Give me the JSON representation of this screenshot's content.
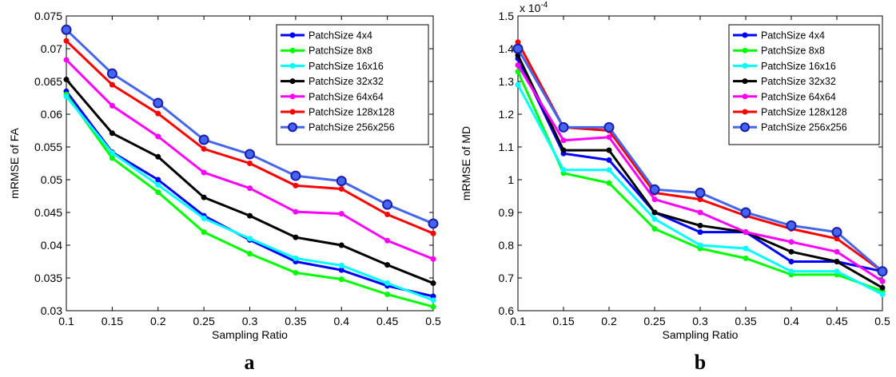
{
  "chart_data": [
    {
      "type": "line",
      "panel_label": "a",
      "title": "",
      "xlabel": "Sampling Ratio",
      "ylabel": "mRMSE of FA",
      "exponent_label": "",
      "x": [
        0.1,
        0.15,
        0.2,
        0.25,
        0.3,
        0.35,
        0.4,
        0.45,
        0.5
      ],
      "x_ticks": [
        "0.1",
        "0.15",
        "0.2",
        "0.25",
        "0.3",
        "0.35",
        "0.4",
        "0.45",
        "0.5"
      ],
      "xlim": [
        0.1,
        0.5
      ],
      "ylim": [
        0.03,
        0.075
      ],
      "y_ticks": [
        0.03,
        0.035,
        0.04,
        0.045,
        0.05,
        0.055,
        0.06,
        0.065,
        0.07,
        0.075
      ],
      "y_tick_labels": [
        "0.03",
        "0.035",
        "0.04",
        "0.045",
        "0.05",
        "0.055",
        "0.06",
        "0.065",
        "0.07",
        "0.075"
      ],
      "grid": false,
      "legend_position": "top-right",
      "series": [
        {
          "name": "PatchSize 4x4",
          "color": "#0000ff",
          "marker": "dot",
          "values": [
            0.0635,
            0.0542,
            0.05,
            0.0445,
            0.0408,
            0.0375,
            0.0362,
            0.0338,
            0.0322
          ]
        },
        {
          "name": "PatchSize 8x8",
          "color": "#00ff00",
          "marker": "dot",
          "values": [
            0.063,
            0.0533,
            0.0481,
            0.042,
            0.0387,
            0.0358,
            0.0348,
            0.0325,
            0.0306
          ]
        },
        {
          "name": "PatchSize 16x16",
          "color": "#00ffff",
          "marker": "dot",
          "values": [
            0.0627,
            0.0541,
            0.0492,
            0.0441,
            0.041,
            0.038,
            0.0369,
            0.0342,
            0.0316
          ]
        },
        {
          "name": "PatchSize 32x32",
          "color": "#000000",
          "marker": "dot",
          "values": [
            0.0653,
            0.0571,
            0.0535,
            0.0473,
            0.0445,
            0.0412,
            0.04,
            0.037,
            0.0342
          ]
        },
        {
          "name": "PatchSize 64x64",
          "color": "#ff00ff",
          "marker": "dot",
          "values": [
            0.0683,
            0.0613,
            0.0566,
            0.0511,
            0.0487,
            0.0451,
            0.0448,
            0.0407,
            0.0379
          ]
        },
        {
          "name": "PatchSize 128x128",
          "color": "#ff0000",
          "marker": "dot",
          "values": [
            0.0712,
            0.0645,
            0.0601,
            0.0547,
            0.0525,
            0.0491,
            0.0486,
            0.0447,
            0.0418
          ]
        },
        {
          "name": "PatchSize 256x256",
          "color": "#4466ee",
          "marker": "circle",
          "values": [
            0.0729,
            0.0662,
            0.0617,
            0.0561,
            0.0539,
            0.0506,
            0.0498,
            0.0462,
            0.0433
          ]
        }
      ]
    },
    {
      "type": "line",
      "panel_label": "b",
      "title": "",
      "xlabel": "Sampling Ratio",
      "ylabel": "mRMSE of MD",
      "exponent_label": "x 10",
      "exponent_power": "-4",
      "x": [
        0.1,
        0.15,
        0.2,
        0.25,
        0.3,
        0.35,
        0.4,
        0.45,
        0.5
      ],
      "x_ticks": [
        "0.1",
        "0.15",
        "0.2",
        "0.25",
        "0.3",
        "0.35",
        "0.4",
        "0.45",
        "0.5"
      ],
      "xlim": [
        0.1,
        0.5
      ],
      "ylim": [
        0.6,
        1.5
      ],
      "y_ticks": [
        0.6,
        0.7,
        0.8,
        0.9,
        1.0,
        1.1,
        1.2,
        1.3,
        1.4,
        1.5
      ],
      "y_tick_labels": [
        "0.6",
        "0.7",
        "0.8",
        "0.9",
        "1",
        "1.1",
        "1.2",
        "1.3",
        "1.4",
        "1.5"
      ],
      "grid": false,
      "legend_position": "top-right",
      "series": [
        {
          "name": "PatchSize 4x4",
          "color": "#0000ff",
          "marker": "dot",
          "values": [
            1.37,
            1.08,
            1.06,
            0.9,
            0.84,
            0.84,
            0.75,
            0.75,
            0.72
          ]
        },
        {
          "name": "PatchSize 8x8",
          "color": "#00ff00",
          "marker": "dot",
          "values": [
            1.33,
            1.02,
            0.99,
            0.85,
            0.79,
            0.76,
            0.71,
            0.71,
            0.66
          ]
        },
        {
          "name": "PatchSize 16x16",
          "color": "#00ffff",
          "marker": "dot",
          "values": [
            1.29,
            1.03,
            1.03,
            0.88,
            0.8,
            0.79,
            0.72,
            0.72,
            0.65
          ]
        },
        {
          "name": "PatchSize 32x32",
          "color": "#000000",
          "marker": "dot",
          "values": [
            1.38,
            1.09,
            1.09,
            0.9,
            0.86,
            0.84,
            0.78,
            0.75,
            0.67
          ]
        },
        {
          "name": "PatchSize 64x64",
          "color": "#ff00ff",
          "marker": "dot",
          "values": [
            1.35,
            1.12,
            1.13,
            0.94,
            0.9,
            0.84,
            0.81,
            0.78,
            0.69
          ]
        },
        {
          "name": "PatchSize 128x128",
          "color": "#ff0000",
          "marker": "dot",
          "values": [
            1.42,
            1.16,
            1.15,
            0.96,
            0.94,
            0.89,
            0.85,
            0.82,
            0.72
          ]
        },
        {
          "name": "PatchSize 256x256",
          "color": "#4466ee",
          "marker": "circle",
          "values": [
            1.4,
            1.16,
            1.16,
            0.97,
            0.96,
            0.9,
            0.86,
            0.84,
            0.72
          ]
        }
      ]
    }
  ]
}
